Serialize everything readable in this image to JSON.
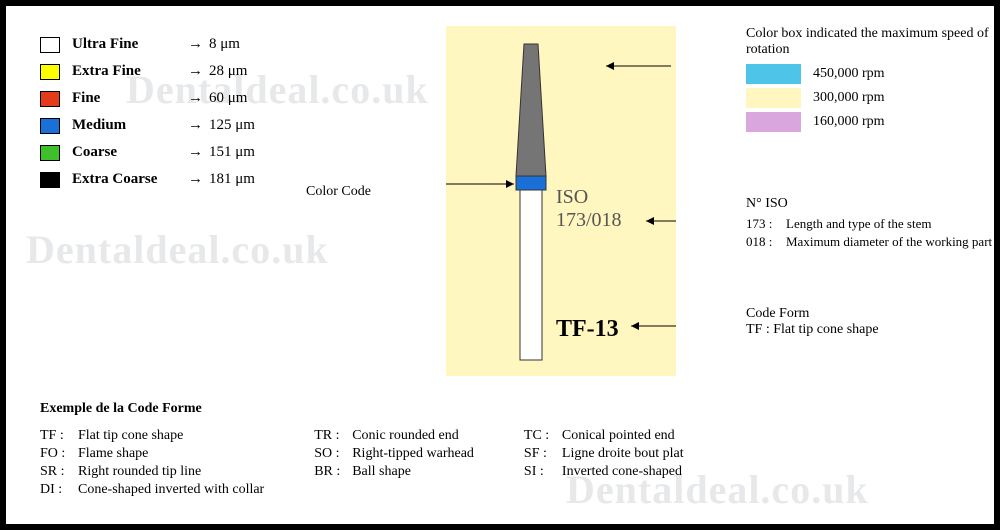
{
  "canvas": {
    "bg": "#ffffff",
    "border": "#000000"
  },
  "watermark": {
    "text": "Dentaldeal.co.uk",
    "color": "#cfd3d6"
  },
  "grit_levels": [
    {
      "name": "Ultra Fine",
      "value": "8 μm",
      "color": "#ffffff"
    },
    {
      "name": "Extra Fine",
      "value": "28 μm",
      "color": "#ffff00"
    },
    {
      "name": "Fine",
      "value": "60 μm",
      "color": "#e43c1b"
    },
    {
      "name": "Medium",
      "value": "125 μm",
      "color": "#1b70d8"
    },
    {
      "name": "Coarse",
      "value": "151 μm",
      "color": "#3fbf2c"
    },
    {
      "name": "Extra Coarse",
      "value": "181 μm",
      "color": "#000000"
    }
  ],
  "diagram": {
    "bg": "#fff7bf",
    "bur": {
      "head_color": "#757575",
      "ring_color": "#1b70d8",
      "shank_color": "#ffffff",
      "outline": "#333333"
    },
    "iso_label": "ISO",
    "iso_value": "173/018",
    "code": "TF-13"
  },
  "color_code_label": "Color Code",
  "speed": {
    "title": "Color box indicated the maximum speed of rotation",
    "rows": [
      {
        "color": "#4ec4e8",
        "label": "450,000 rpm"
      },
      {
        "color": "#fff7bf",
        "label": "300,000 rpm"
      },
      {
        "color": "#d9a6dd",
        "label": "160,000 rpm"
      }
    ]
  },
  "niso": {
    "title": "N° ISO",
    "rows": [
      {
        "k": "173 :",
        "v": "Length and type of the stem"
      },
      {
        "k": "018 :",
        "v": "Maximum diameter of the working part"
      }
    ]
  },
  "codeform": {
    "title": "Code  Form",
    "line": "TF : Flat tip cone shape"
  },
  "bottom": {
    "title": "Exemple de la Code Forme",
    "cols": [
      [
        {
          "c": "TF :",
          "d": "Flat tip cone shape"
        },
        {
          "c": "FO :",
          "d": "Flame shape"
        },
        {
          "c": "SR :",
          "d": "Right rounded tip line"
        },
        {
          "c": "DI :",
          "d": "Cone-shaped inverted with collar"
        }
      ],
      [
        {
          "c": "TR :",
          "d": "Conic rounded end"
        },
        {
          "c": "SO :",
          "d": "Right-tipped warhead"
        },
        {
          "c": "BR :",
          "d": "Ball shape"
        }
      ],
      [
        {
          "c": "TC :",
          "d": "Conical pointed end"
        },
        {
          "c": "SF :",
          "d": "Ligne droite bout plat"
        },
        {
          "c": "SI :",
          "d": "Inverted cone-shaped"
        }
      ]
    ]
  }
}
